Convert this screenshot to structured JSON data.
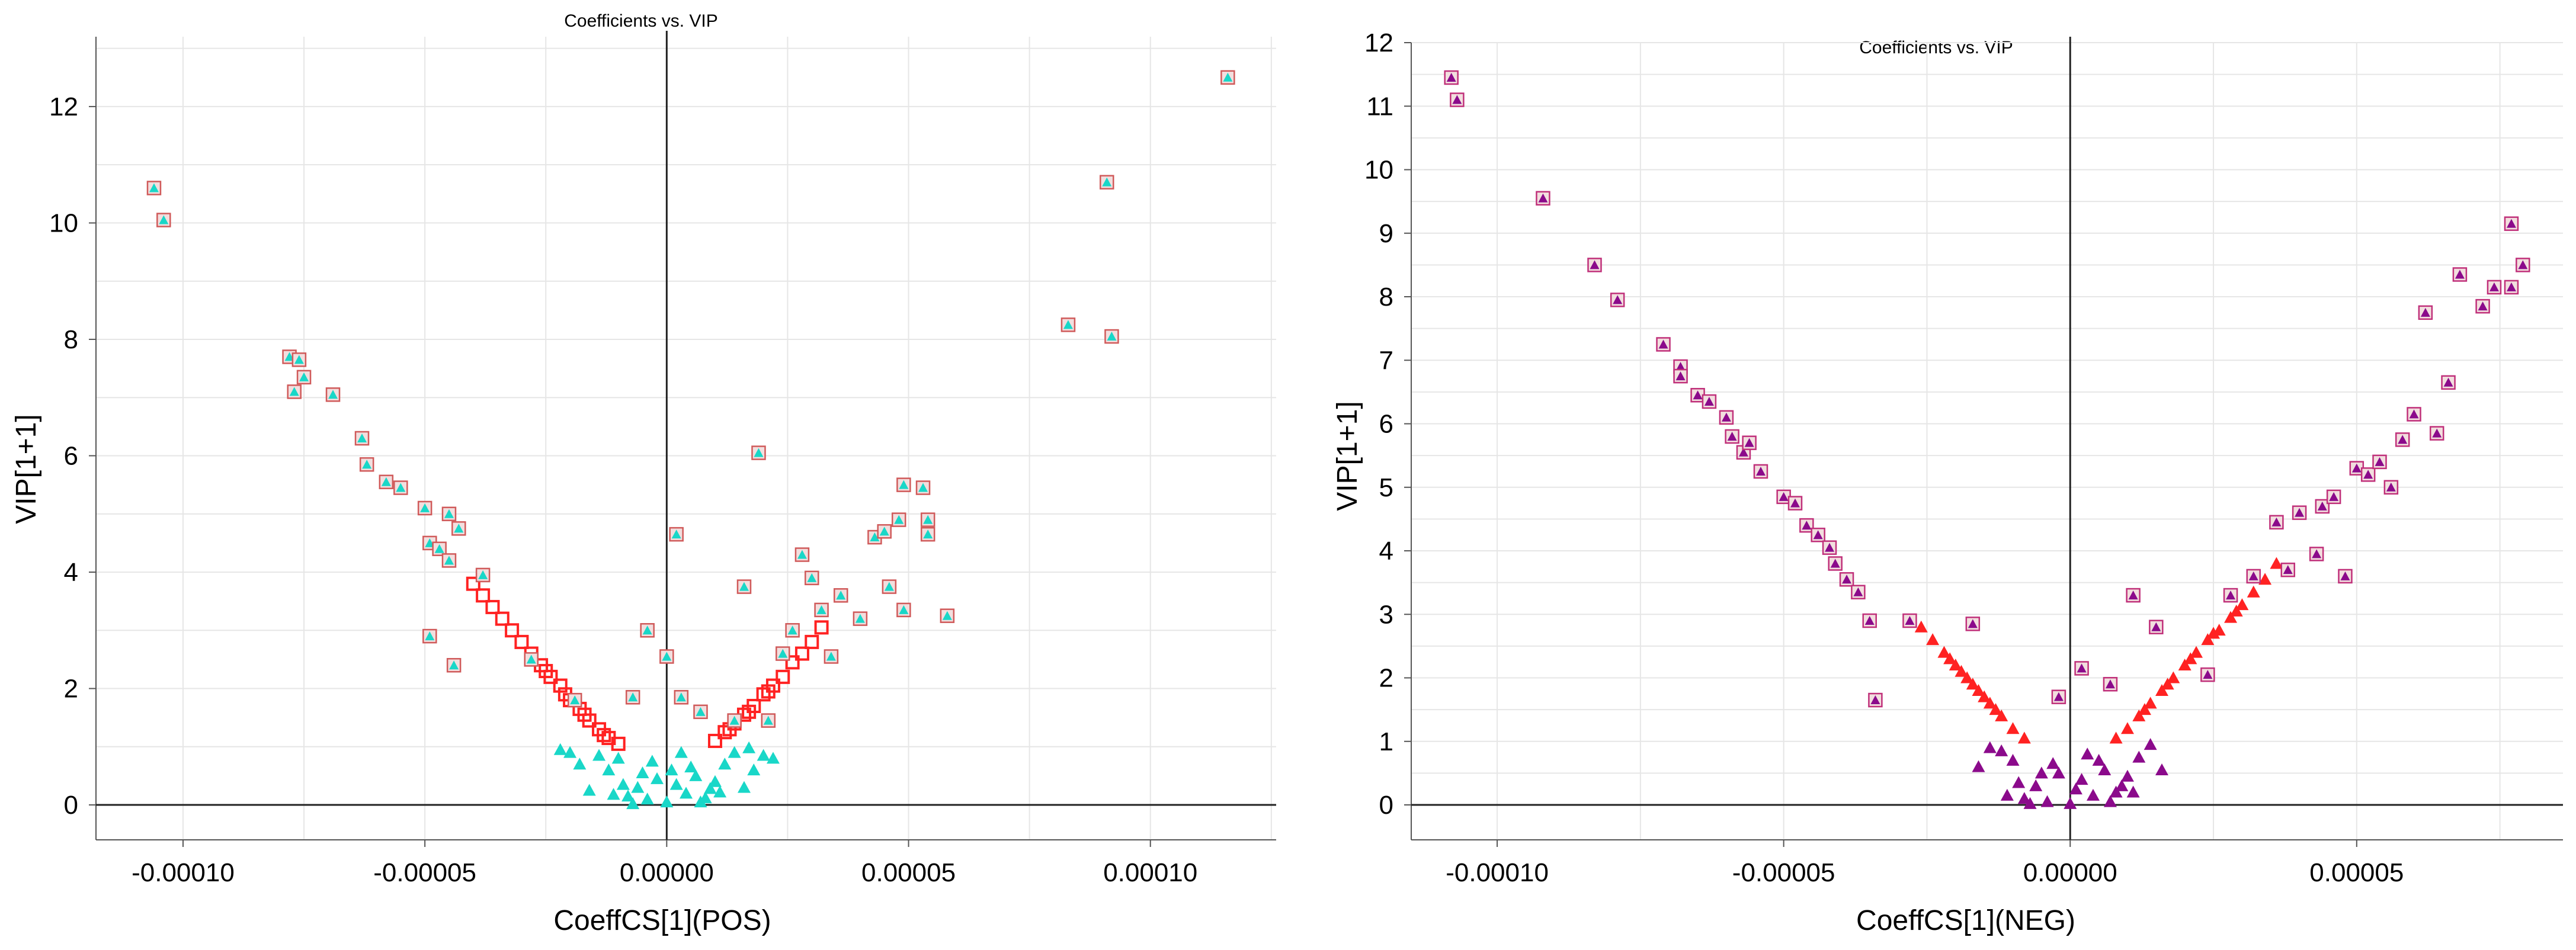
{
  "chart_data": [
    {
      "id": "pos",
      "type": "scatter",
      "title": "Coefficients vs. VIP",
      "xlabel": "CoeffCS[1](POS)",
      "ylabel": "VIP[1+1]",
      "xlim": [
        -0.000118,
        0.000126
      ],
      "ylim": [
        -0.6,
        13.2
      ],
      "xticks": [
        -0.0001,
        -5e-05,
        0,
        5e-05,
        0.0001
      ],
      "xticklabels": [
        "-0.00010",
        "-0.00005",
        "0.00000",
        "0.00005",
        "0.00010"
      ],
      "yticks": [
        0,
        2,
        4,
        6,
        8,
        10,
        12
      ],
      "yticklabels": [
        "0",
        "2",
        "4",
        "6",
        "8",
        "10",
        "12"
      ],
      "grid": true,
      "colors": {
        "low_vip": "#19D7C8",
        "high_vip": "#FF2222",
        "marker_edge": "#D05A5A"
      },
      "series": [
        {
          "marker": "triangle",
          "color": "#19D7C8",
          "points": [
            [
              -8e-06,
              0.15
            ],
            [
              -6e-06,
              0.3
            ],
            [
              -4e-06,
              0.1
            ],
            [
              -2e-06,
              0.45
            ],
            [
              0,
              0.05
            ],
            [
              2e-06,
              0.35
            ],
            [
              4e-06,
              0.2
            ],
            [
              6e-06,
              0.5
            ],
            [
              8e-06,
              0.12
            ],
            [
              1e-05,
              0.4
            ],
            [
              -1.2e-05,
              0.6
            ],
            [
              -1e-05,
              0.8
            ],
            [
              1.2e-05,
              0.7
            ],
            [
              1.4e-05,
              0.9
            ],
            [
              -1.4e-05,
              0.85
            ],
            [
              1.6e-05,
              0.3
            ],
            [
              -1.6e-05,
              0.25
            ],
            [
              3e-06,
              0.9
            ],
            [
              -3e-06,
              0.75
            ],
            [
              1e-06,
              0.6
            ],
            [
              -5e-06,
              0.55
            ],
            [
              5e-06,
              0.65
            ],
            [
              -9e-06,
              0.35
            ],
            [
              9e-06,
              0.28
            ],
            [
              -1.1e-05,
              0.18
            ],
            [
              1.1e-05,
              0.22
            ],
            [
              -1.8e-05,
              0.7
            ],
            [
              1.8e-05,
              0.6
            ],
            [
              -2e-05,
              0.9
            ],
            [
              2e-05,
              0.85
            ],
            [
              -2.2e-05,
              0.95
            ],
            [
              2.2e-05,
              0.8
            ],
            [
              1.7e-05,
              0.98
            ],
            [
              -7e-06,
              0.02
            ],
            [
              7e-06,
              0.05
            ]
          ]
        },
        {
          "marker": "square",
          "color": "#FF2222",
          "points": [
            [
              -3e-05,
              2.8
            ],
            [
              -2.8e-05,
              2.6
            ],
            [
              -2.6e-05,
              2.4
            ],
            [
              -2.4e-05,
              2.2
            ],
            [
              -2.2e-05,
              2.05
            ],
            [
              -2e-05,
              1.8
            ],
            [
              -1.8e-05,
              1.65
            ],
            [
              -1.6e-05,
              1.45
            ],
            [
              -1.4e-05,
              1.3
            ],
            [
              -1.2e-05,
              1.15
            ],
            [
              -1e-05,
              1.05
            ],
            [
              -3.2e-05,
              3.0
            ],
            [
              -3.4e-05,
              3.2
            ],
            [
              -3.6e-05,
              3.4
            ],
            [
              -3.8e-05,
              3.6
            ],
            [
              -4e-05,
              3.8
            ],
            [
              -2.5e-05,
              2.3
            ],
            [
              -2.1e-05,
              1.9
            ],
            [
              -1.7e-05,
              1.55
            ],
            [
              -1.3e-05,
              1.2
            ],
            [
              1e-05,
              1.1
            ],
            [
              1.2e-05,
              1.25
            ],
            [
              1.4e-05,
              1.4
            ],
            [
              1.6e-05,
              1.55
            ],
            [
              1.8e-05,
              1.7
            ],
            [
              2e-05,
              1.9
            ],
            [
              2.2e-05,
              2.05
            ],
            [
              2.4e-05,
              2.2
            ],
            [
              2.6e-05,
              2.45
            ],
            [
              2.8e-05,
              2.6
            ],
            [
              3e-05,
              2.8
            ],
            [
              3.2e-05,
              3.05
            ],
            [
              1.3e-05,
              1.3
            ],
            [
              1.7e-05,
              1.6
            ],
            [
              2.1e-05,
              1.95
            ]
          ]
        },
        {
          "marker": "boxed",
          "color": "#19D7C8",
          "points": [
            [
              -0.000106,
              10.6
            ],
            [
              -0.000104,
              10.05
            ],
            [
              -7.8e-05,
              7.7
            ],
            [
              -7.6e-05,
              7.65
            ],
            [
              -7.5e-05,
              7.35
            ],
            [
              -7.7e-05,
              7.1
            ],
            [
              -6.9e-05,
              7.05
            ],
            [
              -6.3e-05,
              6.3
            ],
            [
              -6.2e-05,
              5.85
            ],
            [
              -5.8e-05,
              5.55
            ],
            [
              -5.5e-05,
              5.45
            ],
            [
              -5e-05,
              5.1
            ],
            [
              -4.9e-05,
              4.5
            ],
            [
              -4.7e-05,
              4.4
            ],
            [
              -4.5e-05,
              5.0
            ],
            [
              -4.3e-05,
              4.75
            ],
            [
              -4.5e-05,
              4.2
            ],
            [
              -4.4e-05,
              2.4
            ],
            [
              -4.9e-05,
              2.9
            ],
            [
              -3.8e-05,
              3.95
            ],
            [
              -2.8e-05,
              2.5
            ],
            [
              -1.9e-05,
              1.8
            ],
            [
              -7e-06,
              1.85
            ],
            [
              -4e-06,
              3.0
            ],
            [
              0,
              2.55
            ],
            [
              2e-06,
              4.65
            ],
            [
              3e-06,
              1.85
            ],
            [
              7e-06,
              1.6
            ],
            [
              1.4e-05,
              1.45
            ],
            [
              1.6e-05,
              3.75
            ],
            [
              1.9e-05,
              6.05
            ],
            [
              2.1e-05,
              1.45
            ],
            [
              2.4e-05,
              2.6
            ],
            [
              2.6e-05,
              3.0
            ],
            [
              2.8e-05,
              4.3
            ],
            [
              3e-05,
              3.9
            ],
            [
              3.2e-05,
              3.35
            ],
            [
              3.4e-05,
              2.55
            ],
            [
              3.6e-05,
              3.6
            ],
            [
              4e-05,
              3.2
            ],
            [
              4.3e-05,
              4.6
            ],
            [
              4.5e-05,
              4.7
            ],
            [
              4.6e-05,
              3.75
            ],
            [
              4.8e-05,
              4.9
            ],
            [
              4.9e-05,
              5.5
            ],
            [
              4.9e-05,
              3.35
            ],
            [
              5.3e-05,
              5.45
            ],
            [
              5.4e-05,
              4.9
            ],
            [
              5.4e-05,
              4.65
            ],
            [
              5.8e-05,
              3.25
            ],
            [
              8.3e-05,
              8.25
            ],
            [
              9.1e-05,
              10.7
            ],
            [
              9.2e-05,
              8.05
            ],
            [
              0.000116,
              12.5
            ]
          ]
        }
      ]
    },
    {
      "id": "neg",
      "type": "scatter",
      "title": "Coefficients vs. VIP",
      "xlabel": "CoeffCS[1](NEG)",
      "ylabel": "VIP[1+1]",
      "xlim": [
        -0.000115,
        8.6e-05
      ],
      "ylim": [
        -0.55,
        12.0
      ],
      "xticks": [
        -0.0001,
        -5e-05,
        0,
        5e-05
      ],
      "xticklabels": [
        "-0.00010",
        "-0.00005",
        "0.00000",
        "0.00005"
      ],
      "yticks": [
        0,
        1,
        2,
        3,
        4,
        5,
        6,
        7,
        8,
        9,
        10,
        11,
        12
      ],
      "yticklabels": [
        "0",
        "1",
        "2",
        "3",
        "4",
        "5",
        "6",
        "7",
        "8",
        "9",
        "10",
        "11",
        "12"
      ],
      "grid": true,
      "colors": {
        "low_vip": "#8B0A8B",
        "high_vip": "#FF2222",
        "marker_edge": "#C0307A"
      },
      "series": [
        {
          "marker": "triangle",
          "color": "#8B0A8B",
          "points": [
            [
              -8e-06,
              0.1
            ],
            [
              -6e-06,
              0.3
            ],
            [
              -4e-06,
              0.05
            ],
            [
              -2e-06,
              0.5
            ],
            [
              0,
              0.02
            ],
            [
              2e-06,
              0.4
            ],
            [
              4e-06,
              0.15
            ],
            [
              6e-06,
              0.55
            ],
            [
              8e-06,
              0.2
            ],
            [
              1e-05,
              0.45
            ],
            [
              -1e-05,
              0.7
            ],
            [
              -1.2e-05,
              0.85
            ],
            [
              1.2e-05,
              0.75
            ],
            [
              1.4e-05,
              0.95
            ],
            [
              -1.4e-05,
              0.9
            ],
            [
              3e-06,
              0.8
            ],
            [
              -3e-06,
              0.65
            ],
            [
              1e-06,
              0.25
            ],
            [
              -5e-06,
              0.5
            ],
            [
              5e-06,
              0.7
            ],
            [
              -9e-06,
              0.35
            ],
            [
              9e-06,
              0.3
            ],
            [
              -1.1e-05,
              0.15
            ],
            [
              1.1e-05,
              0.2
            ],
            [
              -1.6e-05,
              0.6
            ],
            [
              1.6e-05,
              0.55
            ],
            [
              -7e-06,
              0.02
            ],
            [
              7e-06,
              0.05
            ]
          ]
        },
        {
          "marker": "triangle",
          "color": "#FF2222",
          "points": [
            [
              -2.6e-05,
              2.8
            ],
            [
              -2.4e-05,
              2.6
            ],
            [
              -2.2e-05,
              2.4
            ],
            [
              -2e-05,
              2.2
            ],
            [
              -1.8e-05,
              2.0
            ],
            [
              -1.6e-05,
              1.8
            ],
            [
              -1.4e-05,
              1.6
            ],
            [
              -1.2e-05,
              1.4
            ],
            [
              -1e-05,
              1.2
            ],
            [
              -8e-06,
              1.05
            ],
            [
              -2.1e-05,
              2.3
            ],
            [
              -1.7e-05,
              1.9
            ],
            [
              -1.3e-05,
              1.5
            ],
            [
              -1.9e-05,
              2.1
            ],
            [
              -1.5e-05,
              1.7
            ],
            [
              8e-06,
              1.05
            ],
            [
              1e-05,
              1.2
            ],
            [
              1.2e-05,
              1.4
            ],
            [
              1.4e-05,
              1.6
            ],
            [
              1.6e-05,
              1.8
            ],
            [
              1.8e-05,
              2.0
            ],
            [
              2e-05,
              2.2
            ],
            [
              2.2e-05,
              2.4
            ],
            [
              2.4e-05,
              2.6
            ],
            [
              2.6e-05,
              2.75
            ],
            [
              2.8e-05,
              2.95
            ],
            [
              3e-05,
              3.15
            ],
            [
              3.2e-05,
              3.35
            ],
            [
              3.4e-05,
              3.55
            ],
            [
              3.6e-05,
              3.8
            ],
            [
              1.3e-05,
              1.5
            ],
            [
              1.7e-05,
              1.9
            ],
            [
              2.1e-05,
              2.3
            ],
            [
              2.5e-05,
              2.7
            ],
            [
              2.9e-05,
              3.05
            ]
          ]
        },
        {
          "marker": "boxed",
          "color": "#8B0A8B",
          "points": [
            [
              -0.000108,
              11.45
            ],
            [
              -0.000107,
              11.1
            ],
            [
              -9.2e-05,
              9.55
            ],
            [
              -8.3e-05,
              8.5
            ],
            [
              -7.9e-05,
              7.95
            ],
            [
              -7.1e-05,
              7.25
            ],
            [
              -6.8e-05,
              6.9
            ],
            [
              -6.8e-05,
              6.75
            ],
            [
              -6.5e-05,
              6.45
            ],
            [
              -6.3e-05,
              6.35
            ],
            [
              -6e-05,
              6.1
            ],
            [
              -5.9e-05,
              5.8
            ],
            [
              -5.7e-05,
              5.55
            ],
            [
              -5.6e-05,
              5.7
            ],
            [
              -5.4e-05,
              5.25
            ],
            [
              -5e-05,
              4.85
            ],
            [
              -4.8e-05,
              4.75
            ],
            [
              -4.6e-05,
              4.4
            ],
            [
              -4.4e-05,
              4.25
            ],
            [
              -4.2e-05,
              4.05
            ],
            [
              -4.1e-05,
              3.8
            ],
            [
              -3.9e-05,
              3.55
            ],
            [
              -3.7e-05,
              3.35
            ],
            [
              -3.5e-05,
              2.9
            ],
            [
              -3.4e-05,
              1.65
            ],
            [
              -2.8e-05,
              2.9
            ],
            [
              -1.7e-05,
              2.85
            ],
            [
              -2e-06,
              1.7
            ],
            [
              2e-06,
              2.15
            ],
            [
              7e-06,
              1.9
            ],
            [
              1.1e-05,
              3.3
            ],
            [
              1.5e-05,
              2.8
            ],
            [
              2.4e-05,
              2.05
            ],
            [
              2.8e-05,
              3.3
            ],
            [
              3.2e-05,
              3.6
            ],
            [
              3.6e-05,
              4.45
            ],
            [
              3.8e-05,
              3.7
            ],
            [
              4e-05,
              4.6
            ],
            [
              4.3e-05,
              3.95
            ],
            [
              4.4e-05,
              4.7
            ],
            [
              4.6e-05,
              4.85
            ],
            [
              4.8e-05,
              3.6
            ],
            [
              5e-05,
              5.3
            ],
            [
              5.2e-05,
              5.2
            ],
            [
              5.4e-05,
              5.4
            ],
            [
              5.6e-05,
              5.0
            ],
            [
              5.8e-05,
              5.75
            ],
            [
              6e-05,
              6.15
            ],
            [
              6.2e-05,
              7.75
            ],
            [
              6.4e-05,
              5.85
            ],
            [
              6.6e-05,
              6.65
            ],
            [
              6.8e-05,
              8.35
            ],
            [
              7.2e-05,
              7.85
            ],
            [
              7.4e-05,
              8.15
            ],
            [
              7.7e-05,
              9.15
            ],
            [
              7.7e-05,
              8.15
            ],
            [
              7.9e-05,
              8.5
            ]
          ]
        }
      ]
    }
  ]
}
